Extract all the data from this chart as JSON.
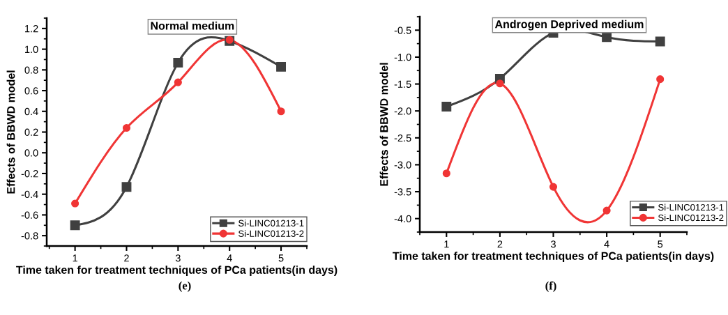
{
  "chart_data": [
    {
      "type": "line",
      "title": "Normal medium",
      "xlabel": "Time taken for treatment techniques of PCa patients(in days)",
      "ylabel": "Effects of BBWD model",
      "x": [
        1,
        2,
        3,
        4,
        5
      ],
      "xlim": [
        0.45,
        5.5
      ],
      "xticks": [
        1,
        2,
        3,
        4,
        5
      ],
      "ylim": [
        -0.9,
        1.3
      ],
      "yticks": [
        {
          "value": -0.8,
          "label": "-0.8"
        },
        {
          "value": -0.6,
          "label": "-0.6"
        },
        {
          "value": -0.4,
          "label": "-0.4"
        },
        {
          "value": -0.2,
          "label": "-0.2"
        },
        {
          "value": 0.0,
          "label": "0.0"
        },
        {
          "value": 0.2,
          "label": "0.2"
        },
        {
          "value": 0.4,
          "label": "0.4"
        },
        {
          "value": 0.6,
          "label": "0.6"
        },
        {
          "value": 0.8,
          "label": "0.8"
        },
        {
          "value": 1.0,
          "label": "1.0"
        },
        {
          "value": 1.2,
          "label": "1.2"
        }
      ],
      "legend": "bottom right",
      "grid": false,
      "line_style": "solid",
      "annotations": [
        "(e)"
      ],
      "series": [
        {
          "name": "Si-LINC01213-1",
          "color": "#404040",
          "marker": "square",
          "values": [
            -0.7,
            -0.33,
            0.87,
            1.08,
            0.83
          ]
        },
        {
          "name": "Si-LINC01213-2",
          "color": "#f03535",
          "marker": "circle",
          "values": [
            -0.49,
            0.24,
            0.68,
            1.09,
            0.4
          ]
        }
      ]
    },
    {
      "type": "line",
      "title": "Androgen Deprived medium",
      "xlabel": "Time taken for treatment techniques of PCa patients(in days)",
      "ylabel": "Effects of BBWD model",
      "x": [
        1,
        2,
        3,
        4,
        5
      ],
      "xlim": [
        0.5,
        5.5
      ],
      "xticks": [
        1,
        2,
        3,
        4,
        5
      ],
      "ylim": [
        -4.25,
        -0.25
      ],
      "yticks": [
        {
          "value": -4.0,
          "label": "-4.0"
        },
        {
          "value": -3.5,
          "label": "-3.5"
        },
        {
          "value": -3.0,
          "label": "-3.0"
        },
        {
          "value": -2.5,
          "label": "-2.5"
        },
        {
          "value": -2.0,
          "label": "-2.0"
        },
        {
          "value": -1.5,
          "label": "-1.5"
        },
        {
          "value": -1.0,
          "label": "-1.0"
        },
        {
          "value": -0.5,
          "label": "-0.5"
        }
      ],
      "legend": "bottom right",
      "grid": false,
      "line_style": "solid",
      "annotations": [
        "(f)"
      ],
      "series": [
        {
          "name": "Si-LINC01213-1",
          "color": "#404040",
          "marker": "square",
          "values": [
            -1.92,
            -1.4,
            -0.55,
            -0.63,
            -0.71
          ]
        },
        {
          "name": "Si-LINC01213-2",
          "color": "#f03535",
          "marker": "circle",
          "values": [
            -3.16,
            -1.49,
            -3.41,
            -3.85,
            -1.41
          ]
        }
      ]
    }
  ]
}
